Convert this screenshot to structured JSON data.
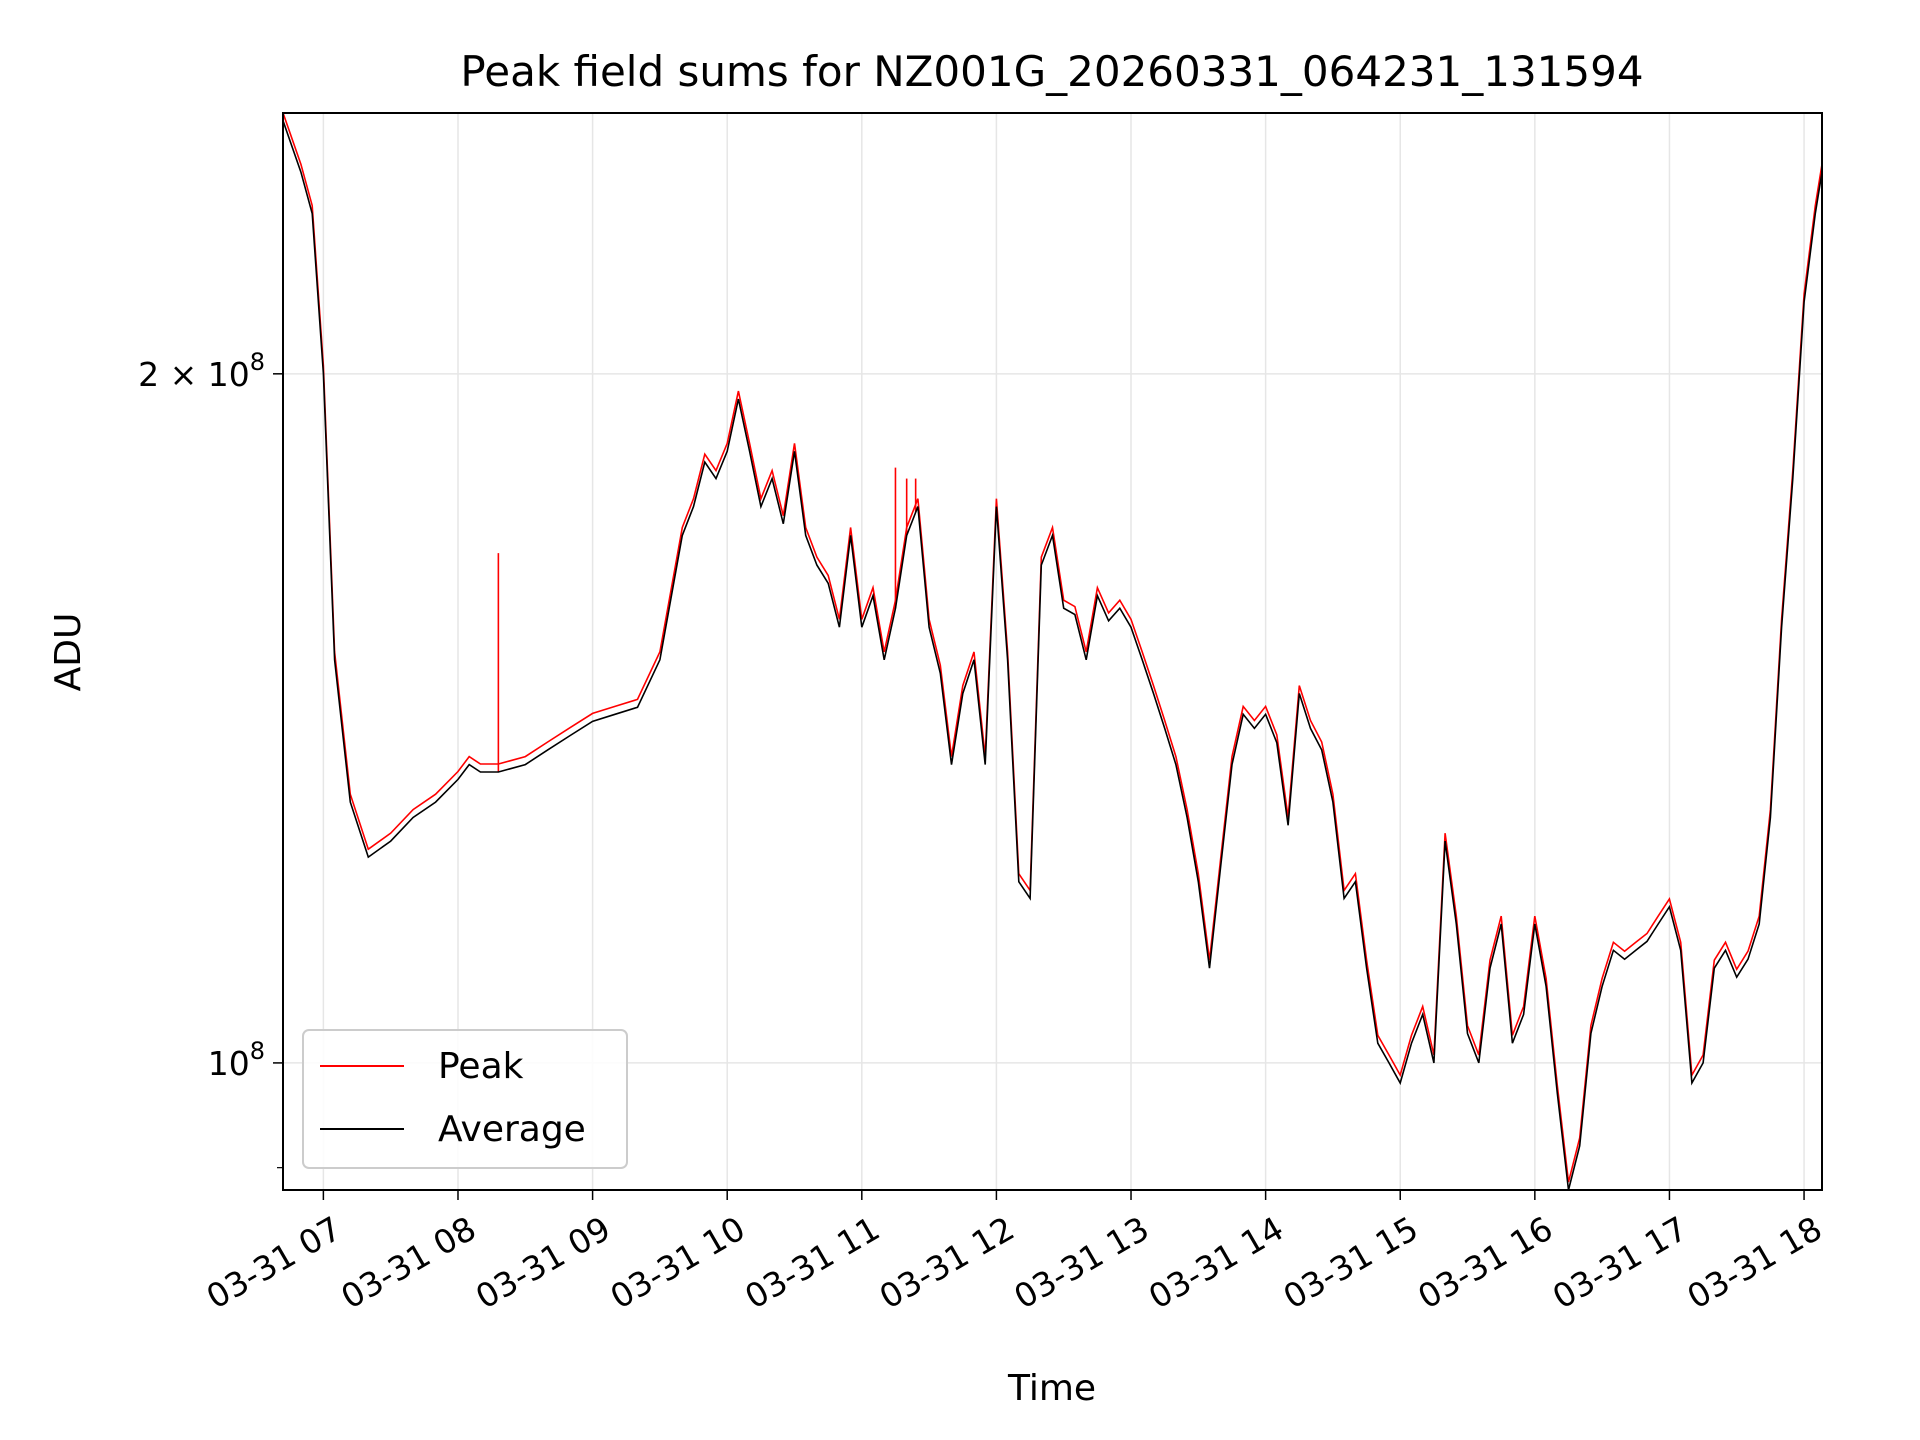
{
  "chart_data": {
    "type": "line",
    "title": "Peak field sums for NZ001G_20260331_064231_131594",
    "xlabel": "Time",
    "ylabel": "ADU",
    "y_scale": "log",
    "ylim": [
      88000000,
      260000000
    ],
    "xlim": [
      "03-31 06:42",
      "03-31 18:08"
    ],
    "grid": true,
    "legend_position": "lower-left",
    "x_ticks": [
      "03-31 07",
      "03-31 08",
      "03-31 09",
      "03-31 10",
      "03-31 11",
      "03-31 12",
      "03-31 13",
      "03-31 14",
      "03-31 15",
      "03-31 16",
      "03-31 17",
      "03-31 18"
    ],
    "x_tick_hours": [
      7,
      8,
      9,
      10,
      11,
      12,
      13,
      14,
      15,
      16,
      17,
      18
    ],
    "y_ticks": [
      {
        "value": 200000000,
        "mantissa": "2",
        "base": "10",
        "exp": "8"
      },
      {
        "value": 100000000,
        "mantissa": "",
        "base": "10",
        "exp": "8"
      }
    ],
    "y_minor_ticks": [
      90000000
    ],
    "series": [
      {
        "name": "Peak",
        "color": "#ff0000",
        "spikes": [
          {
            "x": "03-31 08:18",
            "y": 167000000
          },
          {
            "x": "03-31 11:15",
            "y": 182000000
          },
          {
            "x": "03-31 11:20",
            "y": 180000000
          },
          {
            "x": "03-31 11:24",
            "y": 180000000
          }
        ]
      },
      {
        "name": "Average",
        "color": "#000000",
        "x": [
          "03-31 06:42",
          "03-31 06:50",
          "03-31 06:55",
          "03-31 07:00",
          "03-31 07:05",
          "03-31 07:12",
          "03-31 07:20",
          "03-31 07:30",
          "03-31 07:40",
          "03-31 07:50",
          "03-31 08:00",
          "03-31 08:05",
          "03-31 08:10",
          "03-31 08:18",
          "03-31 08:30",
          "03-31 08:40",
          "03-31 08:50",
          "03-31 09:00",
          "03-31 09:10",
          "03-31 09:20",
          "03-31 09:30",
          "03-31 09:40",
          "03-31 09:45",
          "03-31 09:50",
          "03-31 09:55",
          "03-31 10:00",
          "03-31 10:05",
          "03-31 10:10",
          "03-31 10:15",
          "03-31 10:20",
          "03-31 10:25",
          "03-31 10:30",
          "03-31 10:35",
          "03-31 10:40",
          "03-31 10:45",
          "03-31 10:50",
          "03-31 10:55",
          "03-31 11:00",
          "03-31 11:05",
          "03-31 11:10",
          "03-31 11:15",
          "03-31 11:20",
          "03-31 11:25",
          "03-31 11:30",
          "03-31 11:35",
          "03-31 11:40",
          "03-31 11:45",
          "03-31 11:50",
          "03-31 11:55",
          "03-31 12:00",
          "03-31 12:05",
          "03-31 12:10",
          "03-31 12:15",
          "03-31 12:20",
          "03-31 12:25",
          "03-31 12:30",
          "03-31 12:35",
          "03-31 12:40",
          "03-31 12:45",
          "03-31 12:50",
          "03-31 12:55",
          "03-31 13:00",
          "03-31 13:05",
          "03-31 13:10",
          "03-31 13:15",
          "03-31 13:20",
          "03-31 13:25",
          "03-31 13:30",
          "03-31 13:35",
          "03-31 13:40",
          "03-31 13:45",
          "03-31 13:50",
          "03-31 13:55",
          "03-31 14:00",
          "03-31 14:05",
          "03-31 14:10",
          "03-31 14:15",
          "03-31 14:20",
          "03-31 14:25",
          "03-31 14:30",
          "03-31 14:35",
          "03-31 14:40",
          "03-31 14:45",
          "03-31 14:50",
          "03-31 14:55",
          "03-31 15:00",
          "03-31 15:05",
          "03-31 15:10",
          "03-31 15:15",
          "03-31 15:20",
          "03-31 15:25",
          "03-31 15:30",
          "03-31 15:35",
          "03-31 15:40",
          "03-31 15:45",
          "03-31 15:50",
          "03-31 15:55",
          "03-31 16:00",
          "03-31 16:05",
          "03-31 16:10",
          "03-31 16:15",
          "03-31 16:20",
          "03-31 16:25",
          "03-31 16:30",
          "03-31 16:35",
          "03-31 16:40",
          "03-31 16:45",
          "03-31 16:50",
          "03-31 16:55",
          "03-31 17:00",
          "03-31 17:05",
          "03-31 17:10",
          "03-31 17:15",
          "03-31 17:20",
          "03-31 17:25",
          "03-31 17:30",
          "03-31 17:35",
          "03-31 17:40",
          "03-31 17:45",
          "03-31 17:50",
          "03-31 17:55",
          "03-31 18:00",
          "03-31 18:05",
          "03-31 18:08"
        ],
        "values": [
          258000000,
          245000000,
          235000000,
          200000000,
          150000000,
          130000000,
          123000000,
          125000000,
          128000000,
          130000000,
          133000000,
          135000000,
          134000000,
          134000000,
          135000000,
          137000000,
          139000000,
          141000000,
          142000000,
          143000000,
          150000000,
          170000000,
          175000000,
          183000000,
          180000000,
          185000000,
          195000000,
          185000000,
          175000000,
          180000000,
          172000000,
          185000000,
          170000000,
          165000000,
          162000000,
          155000000,
          170000000,
          155000000,
          160000000,
          150000000,
          158000000,
          170000000,
          175000000,
          155000000,
          148000000,
          135000000,
          145000000,
          150000000,
          135000000,
          175000000,
          150000000,
          120000000,
          118000000,
          165000000,
          170000000,
          158000000,
          157000000,
          150000000,
          160000000,
          156000000,
          158000000,
          155000000,
          150000000,
          145000000,
          140000000,
          135000000,
          128000000,
          120000000,
          110000000,
          122000000,
          135000000,
          142000000,
          140000000,
          142000000,
          138000000,
          127000000,
          145000000,
          140000000,
          137000000,
          130000000,
          118000000,
          120000000,
          110000000,
          102000000,
          100000000,
          98000000,
          102000000,
          105000000,
          100000000,
          125000000,
          115000000,
          103000000,
          100000000,
          110000000,
          115000000,
          102000000,
          105000000,
          115000000,
          108000000,
          97000000,
          88000000,
          92000000,
          103000000,
          108000000,
          112000000,
          111000000,
          112000000,
          113000000,
          115000000,
          117000000,
          112000000,
          98000000,
          100000000,
          110000000,
          112000000,
          109000000,
          111000000,
          115000000,
          128000000,
          155000000,
          180000000,
          215000000,
          235000000,
          245000000
        ]
      }
    ]
  }
}
